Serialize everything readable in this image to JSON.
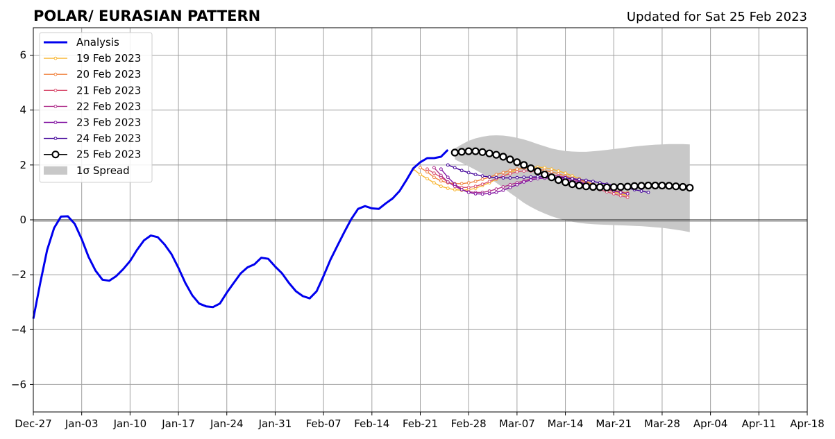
{
  "chart_data": {
    "type": "line",
    "title": "POLAR/ EURASIAN  PATTERN",
    "subtitle": "Updated for Sat 25 Feb 2023",
    "xlabel": "",
    "ylabel": "",
    "xlim": [
      "2022-12-27",
      "2023-04-18"
    ],
    "ylim": [
      -7,
      7
    ],
    "x_ticks": [
      "Dec-27",
      "Jan-03",
      "Jan-10",
      "Jan-17",
      "Jan-24",
      "Jan-31",
      "Feb-07",
      "Feb-14",
      "Feb-21",
      "Feb-28",
      "Mar-07",
      "Mar-14",
      "Mar-21",
      "Mar-28",
      "Apr-04",
      "Apr-11",
      "Apr-18"
    ],
    "y_ticks": [
      "−6",
      "−4",
      "−2",
      "0",
      "2",
      "4",
      "6"
    ],
    "grid": true,
    "legend_position": "upper-left",
    "analysis": {
      "name": "Analysis",
      "color": "#0000ee",
      "start": "2022-12-27",
      "values": [
        -3.6,
        -2.3,
        -1.1,
        -0.3,
        0.12,
        0.13,
        -0.15,
        -0.7,
        -1.35,
        -1.85,
        -2.18,
        -2.22,
        -2.05,
        -1.8,
        -1.5,
        -1.1,
        -0.75,
        -0.57,
        -0.63,
        -0.9,
        -1.25,
        -1.75,
        -2.3,
        -2.75,
        -3.05,
        -3.15,
        -3.18,
        -3.05,
        -2.65,
        -2.3,
        -1.95,
        -1.73,
        -1.62,
        -1.38,
        -1.42,
        -1.7,
        -1.95,
        -2.3,
        -2.6,
        -2.78,
        -2.86,
        -2.6,
        -2.05,
        -1.45,
        -0.95,
        -0.45,
        0.02,
        0.4,
        0.5,
        0.42,
        0.4,
        0.6,
        0.78,
        1.05,
        1.45,
        1.88,
        2.1,
        2.25,
        2.25,
        2.3,
        2.55
      ]
    },
    "forecasts": [
      {
        "name": "19 Feb 2023",
        "color": "#f8b530",
        "start": "2023-02-20",
        "values": [
          1.85,
          1.65,
          1.5,
          1.35,
          1.22,
          1.15,
          1.1,
          1.08,
          1.1,
          1.15,
          1.25,
          1.35,
          1.48,
          1.6,
          1.72,
          1.82,
          1.9,
          1.92,
          1.92,
          1.9,
          1.85,
          1.78,
          1.7,
          1.6,
          1.5,
          1.4,
          1.3,
          1.2,
          1.1,
          1.02,
          0.95,
          0.88
        ]
      },
      {
        "name": "20 Feb 2023",
        "color": "#f0803c",
        "start": "2023-02-21",
        "values": [
          1.9,
          1.75,
          1.55,
          1.42,
          1.35,
          1.32,
          1.32,
          1.35,
          1.4,
          1.48,
          1.55,
          1.65,
          1.72,
          1.8,
          1.85,
          1.88,
          1.88,
          1.85,
          1.8,
          1.75,
          1.68,
          1.6,
          1.52,
          1.45,
          1.38,
          1.3,
          1.22,
          1.15,
          1.08,
          1.02,
          0.98
        ]
      },
      {
        "name": "21 Feb 2023",
        "color": "#d95070",
        "start": "2023-02-22",
        "values": [
          1.85,
          1.7,
          1.55,
          1.38,
          1.25,
          1.18,
          1.18,
          1.22,
          1.3,
          1.4,
          1.5,
          1.6,
          1.68,
          1.75,
          1.78,
          1.78,
          1.75,
          1.7,
          1.65,
          1.58,
          1.5,
          1.42,
          1.35,
          1.28,
          1.2,
          1.1,
          1.02,
          0.95,
          0.88,
          0.82
        ]
      },
      {
        "name": "22 Feb 2023",
        "color": "#b0308c",
        "start": "2023-02-23",
        "values": [
          1.9,
          1.62,
          1.38,
          1.22,
          1.1,
          1.02,
          1.0,
          1.0,
          1.05,
          1.12,
          1.2,
          1.28,
          1.35,
          1.42,
          1.5,
          1.55,
          1.6,
          1.62,
          1.6,
          1.55,
          1.48,
          1.4,
          1.32,
          1.25,
          1.18,
          1.12,
          1.05,
          1.0,
          0.95
        ]
      },
      {
        "name": "23 Feb 2023",
        "color": "#8010a0",
        "start": "2023-02-24",
        "values": [
          1.85,
          1.55,
          1.3,
          1.1,
          1.0,
          0.95,
          0.94,
          0.96,
          1.0,
          1.08,
          1.18,
          1.28,
          1.38,
          1.45,
          1.5,
          1.52,
          1.52,
          1.5,
          1.48,
          1.42,
          1.36,
          1.3,
          1.24,
          1.18,
          1.12,
          1.06,
          1.0,
          0.95
        ]
      },
      {
        "name": "24 Feb 2023",
        "color": "#400098",
        "start": "2023-02-25",
        "values": [
          2.0,
          1.9,
          1.8,
          1.72,
          1.65,
          1.6,
          1.56,
          1.54,
          1.53,
          1.53,
          1.54,
          1.55,
          1.56,
          1.57,
          1.57,
          1.56,
          1.55,
          1.53,
          1.5,
          1.47,
          1.44,
          1.4,
          1.35,
          1.3,
          1.25,
          1.2,
          1.15,
          1.1,
          1.05,
          1.0
        ]
      }
    ],
    "current": {
      "name": "25 Feb 2023",
      "color": "#000000",
      "start": "2023-02-26",
      "values": [
        2.45,
        2.48,
        2.5,
        2.5,
        2.47,
        2.42,
        2.37,
        2.3,
        2.2,
        2.1,
        2.0,
        1.88,
        1.77,
        1.65,
        1.55,
        1.45,
        1.37,
        1.3,
        1.25,
        1.22,
        1.2,
        1.19,
        1.18,
        1.19,
        1.2,
        1.21,
        1.23,
        1.24,
        1.25,
        1.25,
        1.25,
        1.24,
        1.22,
        1.2,
        1.17
      ]
    },
    "spread": {
      "name": "1σ Spread",
      "color": "#c8c8c8",
      "start": "2023-02-26",
      "upper": [
        2.6,
        2.75,
        2.88,
        2.97,
        3.03,
        3.07,
        3.08,
        3.07,
        3.04,
        2.99,
        2.93,
        2.85,
        2.76,
        2.68,
        2.6,
        2.55,
        2.51,
        2.49,
        2.48,
        2.48,
        2.5,
        2.52,
        2.55,
        2.58,
        2.61,
        2.64,
        2.67,
        2.7,
        2.72,
        2.74,
        2.75,
        2.76,
        2.76,
        2.76,
        2.75
      ],
      "lower": [
        2.2,
        2.08,
        1.95,
        1.82,
        1.68,
        1.52,
        1.35,
        1.17,
        0.98,
        0.8,
        0.62,
        0.47,
        0.34,
        0.23,
        0.13,
        0.05,
        -0.02,
        -0.07,
        -0.11,
        -0.14,
        -0.16,
        -0.17,
        -0.18,
        -0.19,
        -0.2,
        -0.21,
        -0.22,
        -0.23,
        -0.25,
        -0.27,
        -0.29,
        -0.32,
        -0.36,
        -0.4,
        -0.45
      ]
    }
  }
}
